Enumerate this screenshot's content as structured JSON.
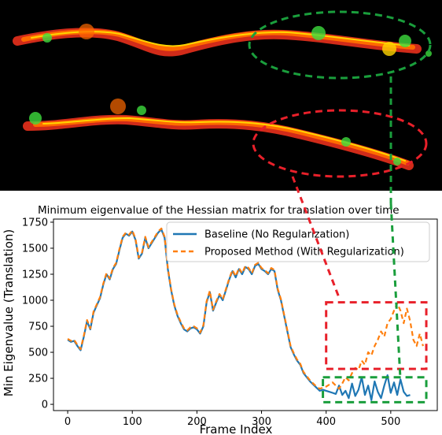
{
  "colors": {
    "baseline": "#1f77b4",
    "proposed": "#ff7f0e",
    "highlight_red": "#e8202a",
    "highlight_green": "#1a9e3c",
    "cloud_orange": "#ff6a00",
    "cloud_red": "#e8301c",
    "cloud_yellow": "#ffd400",
    "cloud_green": "#3ddc3d"
  },
  "chart_data": {
    "type": "line",
    "title": "Minimum eigenvalue of the Hessian matrix for translation over time",
    "xlabel": "Frame Index",
    "ylabel": "Min Eigenvalue (Translation)",
    "xlim": [
      -22,
      572
    ],
    "ylim": [
      -60,
      1780
    ],
    "xticks": [
      "0",
      "100",
      "200",
      "300",
      "400",
      "500"
    ],
    "yticks": [
      "0",
      "250",
      "500",
      "750",
      "1000",
      "1250",
      "1500",
      "1750"
    ],
    "legend_position": "top-right",
    "series": [
      {
        "name": "Baseline (No Regularization)",
        "style": "solid",
        "x": [
          0,
          5,
          10,
          15,
          20,
          25,
          30,
          35,
          40,
          45,
          50,
          55,
          60,
          65,
          70,
          75,
          80,
          85,
          90,
          95,
          100,
          105,
          110,
          115,
          120,
          125,
          130,
          135,
          140,
          145,
          150,
          155,
          160,
          165,
          170,
          175,
          180,
          185,
          190,
          195,
          200,
          205,
          210,
          215,
          220,
          225,
          230,
          235,
          240,
          245,
          250,
          255,
          260,
          265,
          270,
          275,
          280,
          285,
          290,
          295,
          300,
          305,
          310,
          315,
          320,
          325,
          330,
          335,
          340,
          345,
          350,
          355,
          360,
          365,
          370,
          375,
          380,
          385,
          390,
          395,
          400,
          405,
          410,
          415,
          420,
          425,
          430,
          435,
          440,
          445,
          450,
          455,
          460,
          465,
          470,
          475,
          480,
          485,
          490,
          495,
          500,
          505,
          510,
          515,
          520,
          525,
          530
        ],
        "y": [
          620,
          600,
          610,
          560,
          520,
          650,
          800,
          720,
          880,
          950,
          1020,
          1150,
          1250,
          1200,
          1300,
          1350,
          1480,
          1600,
          1640,
          1620,
          1660,
          1580,
          1400,
          1450,
          1600,
          1500,
          1550,
          1600,
          1650,
          1680,
          1600,
          1300,
          1100,
          950,
          850,
          780,
          720,
          700,
          730,
          740,
          720,
          680,
          750,
          980,
          1080,
          900,
          980,
          1050,
          1000,
          1100,
          1200,
          1280,
          1220,
          1300,
          1250,
          1320,
          1300,
          1250,
          1330,
          1350,
          1300,
          1280,
          1250,
          1300,
          1280,
          1100,
          1000,
          850,
          700,
          550,
          480,
          420,
          380,
          300,
          260,
          220,
          190,
          160,
          130,
          140,
          130,
          120,
          110,
          100,
          180,
          90,
          130,
          60,
          200,
          80,
          140,
          260,
          90,
          180,
          40,
          220,
          120,
          60,
          180,
          280,
          110,
          210,
          90,
          240,
          120,
          80,
          90
        ]
      },
      {
        "name": "Proposed Method (With Regularization)",
        "style": "dashed",
        "x": [
          0,
          5,
          10,
          15,
          20,
          25,
          30,
          35,
          40,
          45,
          50,
          55,
          60,
          65,
          70,
          75,
          80,
          85,
          90,
          95,
          100,
          105,
          110,
          115,
          120,
          125,
          130,
          135,
          140,
          145,
          150,
          155,
          160,
          165,
          170,
          175,
          180,
          185,
          190,
          195,
          200,
          205,
          210,
          215,
          220,
          225,
          230,
          235,
          240,
          245,
          250,
          255,
          260,
          265,
          270,
          275,
          280,
          285,
          290,
          295,
          300,
          305,
          310,
          315,
          320,
          325,
          330,
          335,
          340,
          345,
          350,
          355,
          360,
          365,
          370,
          375,
          380,
          385,
          390,
          395,
          400,
          405,
          410,
          415,
          420,
          425,
          430,
          435,
          440,
          445,
          450,
          455,
          460,
          465,
          470,
          475,
          480,
          485,
          490,
          495,
          500,
          505,
          510,
          515,
          520,
          525,
          530,
          535,
          540,
          545,
          550
        ],
        "y": [
          630,
          610,
          620,
          570,
          530,
          660,
          810,
          730,
          890,
          960,
          1030,
          1160,
          1260,
          1210,
          1310,
          1360,
          1490,
          1610,
          1650,
          1630,
          1670,
          1590,
          1410,
          1460,
          1610,
          1510,
          1560,
          1610,
          1660,
          1690,
          1610,
          1310,
          1110,
          960,
          860,
          790,
          730,
          710,
          740,
          750,
          730,
          690,
          760,
          990,
          1090,
          910,
          990,
          1060,
          1010,
          1110,
          1210,
          1290,
          1230,
          1310,
          1260,
          1330,
          1310,
          1260,
          1340,
          1360,
          1310,
          1290,
          1260,
          1310,
          1290,
          1110,
          1010,
          860,
          710,
          560,
          490,
          430,
          390,
          310,
          270,
          230,
          200,
          170,
          150,
          160,
          170,
          190,
          210,
          180,
          150,
          200,
          260,
          230,
          300,
          350,
          330,
          420,
          380,
          500,
          470,
          560,
          620,
          700,
          650,
          780,
          820,
          900,
          970,
          900,
          780,
          920,
          800,
          620,
          560,
          680,
          560
        ]
      }
    ],
    "annotations": [
      {
        "type": "box",
        "color": "red",
        "style": "dashed",
        "x": [
          400,
          555
        ],
        "y": [
          340,
          980
        ]
      },
      {
        "type": "box",
        "color": "green",
        "style": "dashed",
        "x": [
          395,
          555
        ],
        "y": [
          20,
          260
        ]
      }
    ]
  }
}
